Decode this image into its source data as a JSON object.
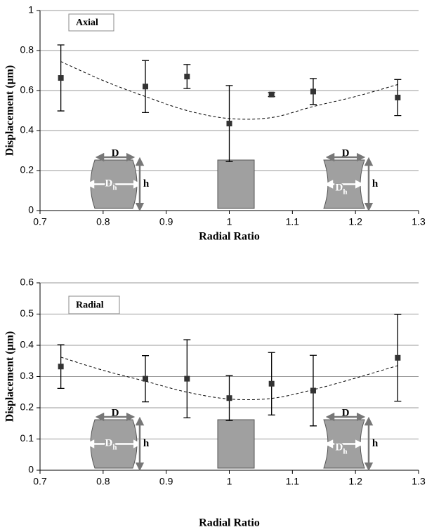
{
  "chart_data": [
    {
      "type": "scatter",
      "annotation": "Axial",
      "x_label": "Radial Ratio",
      "y_label": "Displacement (μm)",
      "x": [
        0.733,
        0.867,
        0.933,
        1.0,
        1.067,
        1.133,
        1.267
      ],
      "values": [
        0.663,
        0.62,
        0.67,
        0.435,
        0.58,
        0.595,
        0.565
      ],
      "errors": [
        0.165,
        0.13,
        0.06,
        0.19,
        0.01,
        0.065,
        0.09
      ],
      "color": "#333333",
      "trendline": {
        "x": [
          0.733,
          0.8,
          0.867,
          0.933,
          1.0,
          1.067,
          1.133,
          1.2,
          1.267
        ],
        "values": [
          0.745,
          0.65,
          0.57,
          0.5,
          0.46,
          0.465,
          0.52,
          0.57,
          0.63
        ]
      },
      "xlim": [
        0.7,
        1.3
      ],
      "xticks": [
        0.7,
        0.8,
        0.9,
        1,
        1.1,
        1.2,
        1.3
      ],
      "ylim": [
        0,
        1
      ],
      "yticks": [
        0,
        0.2,
        0.4,
        0.6,
        0.8,
        1
      ],
      "grid": true,
      "inset_labels": {
        "top_width": "D",
        "mid_width": "D",
        "mid_width_sub": "h",
        "height": "h"
      }
    },
    {
      "type": "scatter",
      "annotation": "Radial",
      "x_label": "Radial Ratio",
      "y_label": "Displacement (μm)",
      "x": [
        0.733,
        0.867,
        0.933,
        1.0,
        1.067,
        1.133,
        1.267
      ],
      "values": [
        0.332,
        0.293,
        0.293,
        0.231,
        0.277,
        0.255,
        0.36
      ],
      "errors": [
        0.07,
        0.074,
        0.125,
        0.072,
        0.1,
        0.113,
        0.139
      ],
      "color": "#333333",
      "trendline": {
        "x": [
          0.733,
          0.8,
          0.867,
          0.933,
          1.0,
          1.067,
          1.133,
          1.2,
          1.267
        ],
        "values": [
          0.362,
          0.32,
          0.285,
          0.25,
          0.228,
          0.23,
          0.258,
          0.295,
          0.335
        ]
      },
      "xlim": [
        0.7,
        1.3
      ],
      "xticks": [
        0.7,
        0.8,
        0.9,
        1,
        1.1,
        1.2,
        1.3
      ],
      "ylim": [
        0,
        0.6
      ],
      "yticks": [
        0,
        0.1,
        0.2,
        0.3,
        0.4,
        0.5,
        0.6
      ],
      "grid": true,
      "inset_labels": {
        "top_width": "D",
        "mid_width": "D",
        "mid_width_sub": "h",
        "height": "h"
      }
    }
  ]
}
